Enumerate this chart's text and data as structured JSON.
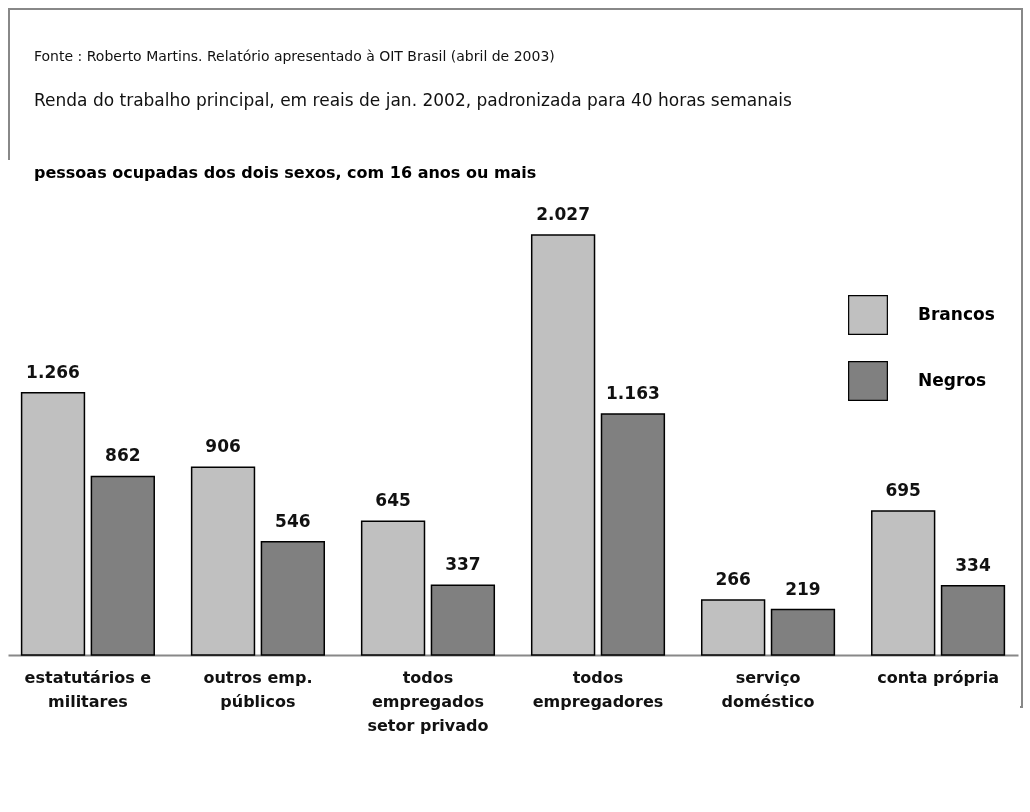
{
  "chart_data": {
    "type": "bar",
    "title": "pessoas ocupadas dos dois sexos, com 16 anos ou mais",
    "subtitle": "Renda do trabalho principal, em reais de jan. 2002, padronizada para 40 horas semanais",
    "annotations": [
      "Fonte : Roberto Martins. Relatório apresentado à OIT Brasil (abril de 2003)"
    ],
    "categories": [
      "estatutários e militares",
      "outros emp. públicos",
      "todos empregados setor privado",
      "todos empregadores",
      "serviço doméstico",
      "conta própria"
    ],
    "series": [
      {
        "name": "Brancos",
        "color": "#c0c0c0",
        "values": [
          1266,
          906,
          645,
          2027,
          266,
          695
        ],
        "value_labels": [
          "1.266",
          "906",
          "645",
          "2.027",
          "266",
          "695"
        ]
      },
      {
        "name": "Negros",
        "color": "#808080",
        "values": [
          862,
          546,
          337,
          1163,
          219,
          334
        ],
        "value_labels": [
          "862",
          "546",
          "337",
          "1.163",
          "219",
          "334"
        ]
      }
    ],
    "legend": "top right",
    "grid": false
  }
}
